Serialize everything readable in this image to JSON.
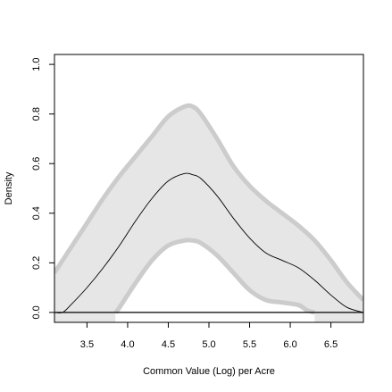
{
  "chart_data": {
    "type": "area",
    "title": "",
    "xlabel": "Common Value (Log) per Acre",
    "ylabel": "Density",
    "xlim": [
      3.1,
      6.9
    ],
    "ylim": [
      -0.04,
      1.04
    ],
    "x_ticks": [
      "3.5",
      "4.0",
      "4.5",
      "5.0",
      "5.5",
      "6.0",
      "6.5"
    ],
    "y_ticks": [
      "0.0",
      "0.2",
      "0.4",
      "0.6",
      "0.8",
      "1.0"
    ],
    "grid": false,
    "legend": "none",
    "colors": {
      "band_fill": "#e6e6e6",
      "band_edge": "#cccccc",
      "line": "#000000",
      "baseline": "#000000"
    },
    "series": [
      {
        "role": "density",
        "x": [
          3.1,
          3.2,
          3.3,
          3.5,
          3.7,
          3.9,
          4.1,
          4.3,
          4.5,
          4.7,
          4.8,
          4.9,
          5.1,
          5.3,
          5.5,
          5.7,
          5.9,
          6.1,
          6.3,
          6.5,
          6.7,
          6.9
        ],
        "y": [
          0.0,
          0.0,
          0.03,
          0.1,
          0.18,
          0.27,
          0.37,
          0.46,
          0.53,
          0.56,
          0.555,
          0.54,
          0.47,
          0.38,
          0.3,
          0.24,
          0.21,
          0.18,
          0.13,
          0.07,
          0.02,
          0.0
        ]
      },
      {
        "role": "upper-bound",
        "x": [
          3.1,
          3.3,
          3.5,
          3.7,
          3.9,
          4.1,
          4.3,
          4.5,
          4.7,
          4.8,
          4.9,
          5.1,
          5.3,
          5.5,
          5.7,
          5.9,
          6.1,
          6.3,
          6.5,
          6.7,
          6.9
        ],
        "y": [
          0.16,
          0.26,
          0.36,
          0.46,
          0.55,
          0.63,
          0.71,
          0.79,
          0.83,
          0.83,
          0.8,
          0.7,
          0.59,
          0.51,
          0.45,
          0.4,
          0.35,
          0.29,
          0.21,
          0.12,
          0.05
        ]
      },
      {
        "role": "lower-bound",
        "x": [
          3.85,
          3.9,
          4.1,
          4.3,
          4.5,
          4.7,
          4.8,
          4.9,
          5.1,
          5.3,
          5.5,
          5.7,
          5.9,
          6.1,
          6.2,
          6.3
        ],
        "y": [
          0.0,
          0.02,
          0.12,
          0.21,
          0.27,
          0.29,
          0.29,
          0.28,
          0.23,
          0.16,
          0.09,
          0.05,
          0.04,
          0.03,
          0.01,
          0.0
        ]
      }
    ]
  }
}
